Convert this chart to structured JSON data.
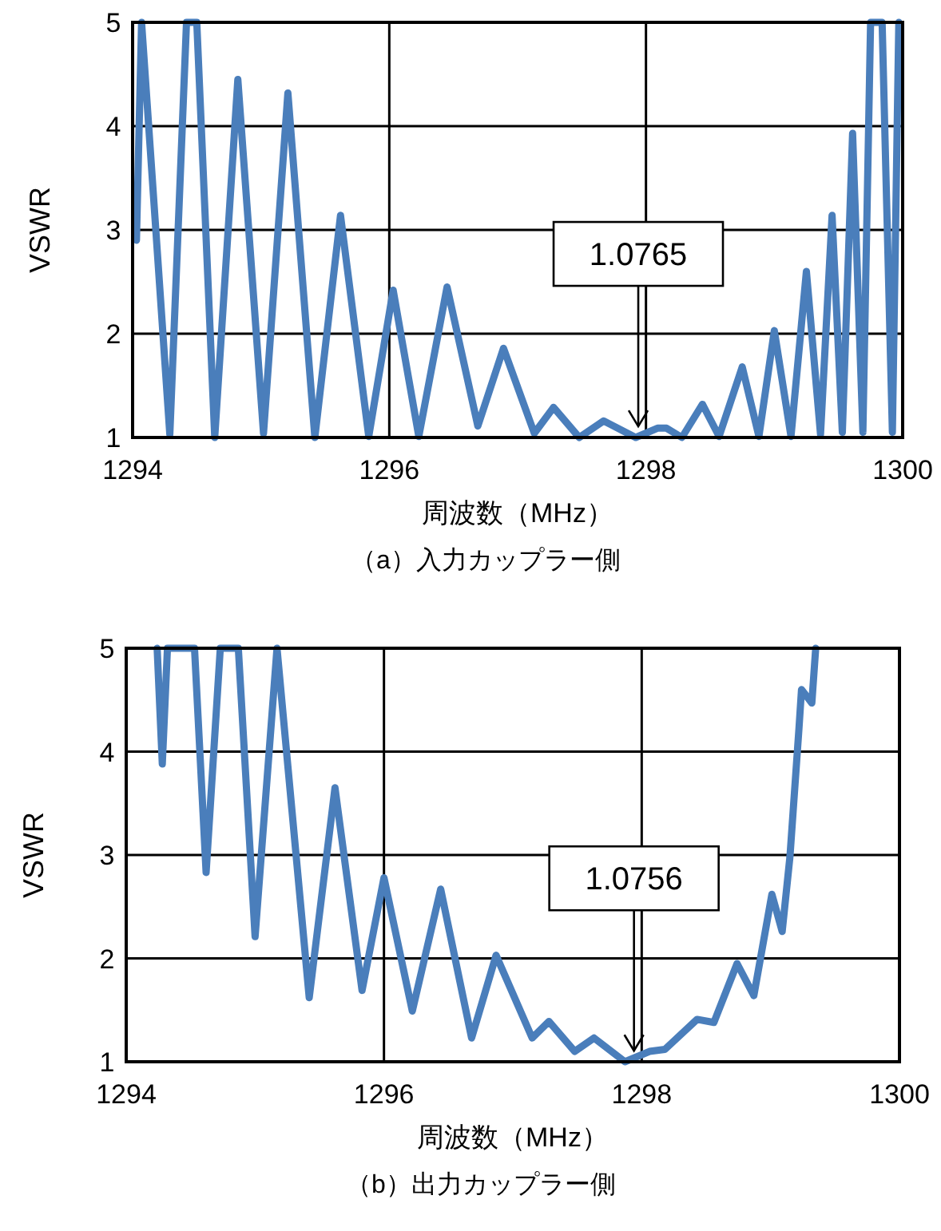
{
  "chart_data": [
    {
      "type": "line",
      "xlabel": "周波数（MHz）",
      "ylabel": "VSWR",
      "xlim": [
        1294,
        1300
      ],
      "xticks": [
        1294,
        1296,
        1298,
        1300
      ],
      "ylim": [
        1,
        5
      ],
      "yticks": [
        1,
        2,
        3,
        4,
        5
      ],
      "grid": true,
      "annotations": [
        {
          "text": "1.0765",
          "x": 1297.94,
          "y": 1.0765
        },
        "（a）入力カップラー側"
      ],
      "series": [
        {
          "color": "#4a7ebb",
          "x": [
            1294.03,
            1294.07,
            1294.29,
            1294.42,
            1294.5,
            1294.64,
            1294.82,
            1295.02,
            1295.21,
            1295.42,
            1295.62,
            1295.84,
            1296.03,
            1296.23,
            1296.45,
            1296.69,
            1296.89,
            1297.13,
            1297.28,
            1297.48,
            1297.67,
            1297.92,
            1298.09,
            1298.16,
            1298.28,
            1298.44,
            1298.57,
            1298.75,
            1298.88,
            1299.0,
            1299.13,
            1299.25,
            1299.36,
            1299.45,
            1299.53,
            1299.61,
            1299.69,
            1299.75,
            1299.84,
            1299.92,
            1299.97
          ],
          "values": [
            2.9,
            5,
            1.03,
            5,
            5,
            1.0,
            4.45,
            1.04,
            4.32,
            1.0,
            3.14,
            1.01,
            2.42,
            1.01,
            2.45,
            1.11,
            1.86,
            1.04,
            1.29,
            1.0,
            1.16,
            1.0,
            1.09,
            1.09,
            1.0,
            1.32,
            1.01,
            1.68,
            1.01,
            2.03,
            1.01,
            2.6,
            1.03,
            3.14,
            1.05,
            3.93,
            1.05,
            5,
            5,
            1.05,
            5
          ]
        }
      ]
    },
    {
      "type": "line",
      "xlabel": "周波数（MHz）",
      "ylabel": "VSWR",
      "xlim": [
        1294,
        1300
      ],
      "xticks": [
        1294,
        1296,
        1298,
        1300
      ],
      "ylim": [
        1,
        5
      ],
      "yticks": [
        1,
        2,
        3,
        4,
        5
      ],
      "grid": true,
      "annotations": [
        {
          "text": "1.0756",
          "x": 1297.94,
          "y": 1.0756
        },
        "（b）出力カップラー側"
      ],
      "series": [
        {
          "color": "#4a7ebb",
          "x": [
            1294.24,
            1294.28,
            1294.32,
            1294.53,
            1294.62,
            1294.73,
            1294.87,
            1295.0,
            1295.17,
            1295.42,
            1295.62,
            1295.83,
            1296.0,
            1296.22,
            1296.44,
            1296.68,
            1296.87,
            1297.15,
            1297.28,
            1297.48,
            1297.63,
            1297.87,
            1298.06,
            1298.18,
            1298.43,
            1298.56,
            1298.74,
            1298.87,
            1299.01,
            1299.09,
            1299.15,
            1299.22,
            1299.24,
            1299.32,
            1299.35
          ],
          "values": [
            5,
            3.88,
            5,
            5,
            2.83,
            5,
            5,
            2.21,
            5,
            1.62,
            3.65,
            1.69,
            2.78,
            1.49,
            2.67,
            1.23,
            2.03,
            1.23,
            1.39,
            1.1,
            1.23,
            1.0,
            1.1,
            1.12,
            1.41,
            1.38,
            1.95,
            1.64,
            2.62,
            2.26,
            2.98,
            4.22,
            4.6,
            4.47,
            5
          ]
        }
      ]
    }
  ]
}
